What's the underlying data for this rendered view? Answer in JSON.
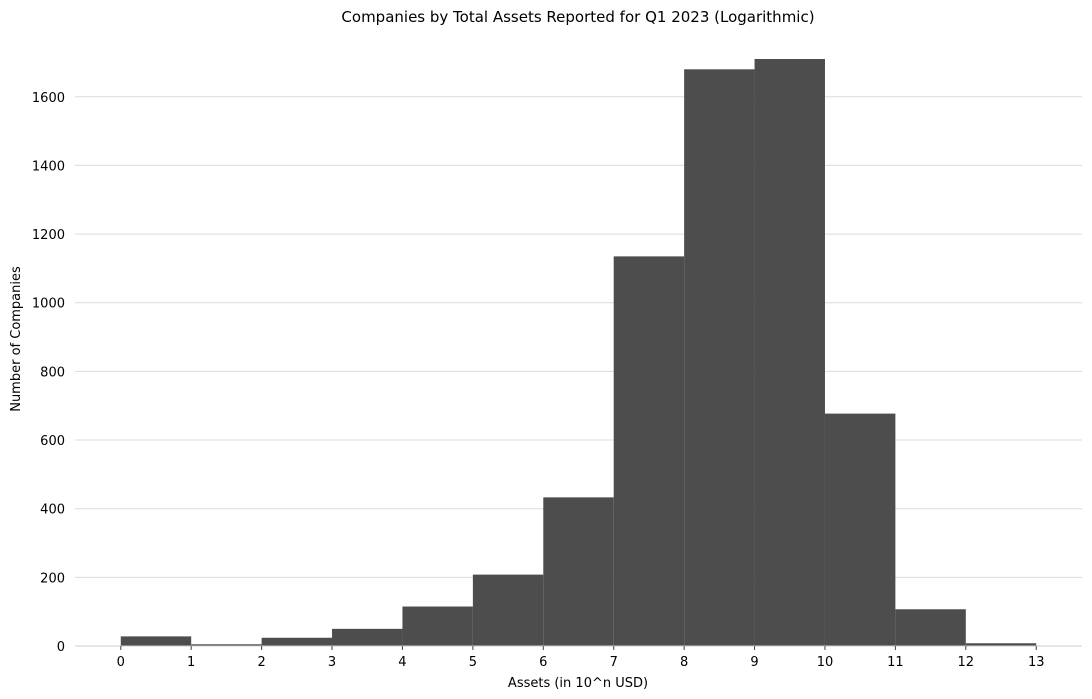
{
  "chart_data": {
    "type": "bar",
    "title": "Companies by Total Assets Reported for Q1 2023 (Logarithmic)",
    "xlabel": "Assets (in 10^n USD)",
    "ylabel": "Number of Companies",
    "bin_edges": [
      0,
      1,
      2,
      3,
      4,
      5,
      6,
      7,
      8,
      9,
      10,
      11,
      12,
      13
    ],
    "values": [
      28,
      5,
      24,
      50,
      115,
      208,
      433,
      1135,
      1680,
      1710,
      677,
      107,
      8
    ],
    "x_ticks": [
      "0",
      "1",
      "2",
      "3",
      "4",
      "5",
      "6",
      "7",
      "8",
      "9",
      "10",
      "11",
      "12",
      "13"
    ],
    "y_ticks": [
      "0",
      "200",
      "400",
      "600",
      "800",
      "1000",
      "1200",
      "1400",
      "1600"
    ],
    "xlim": [
      -0.65,
      13.65
    ],
    "ylim": [
      0,
      1710
    ],
    "grid": "horizontal",
    "bar_color": "#4d4d4d"
  }
}
